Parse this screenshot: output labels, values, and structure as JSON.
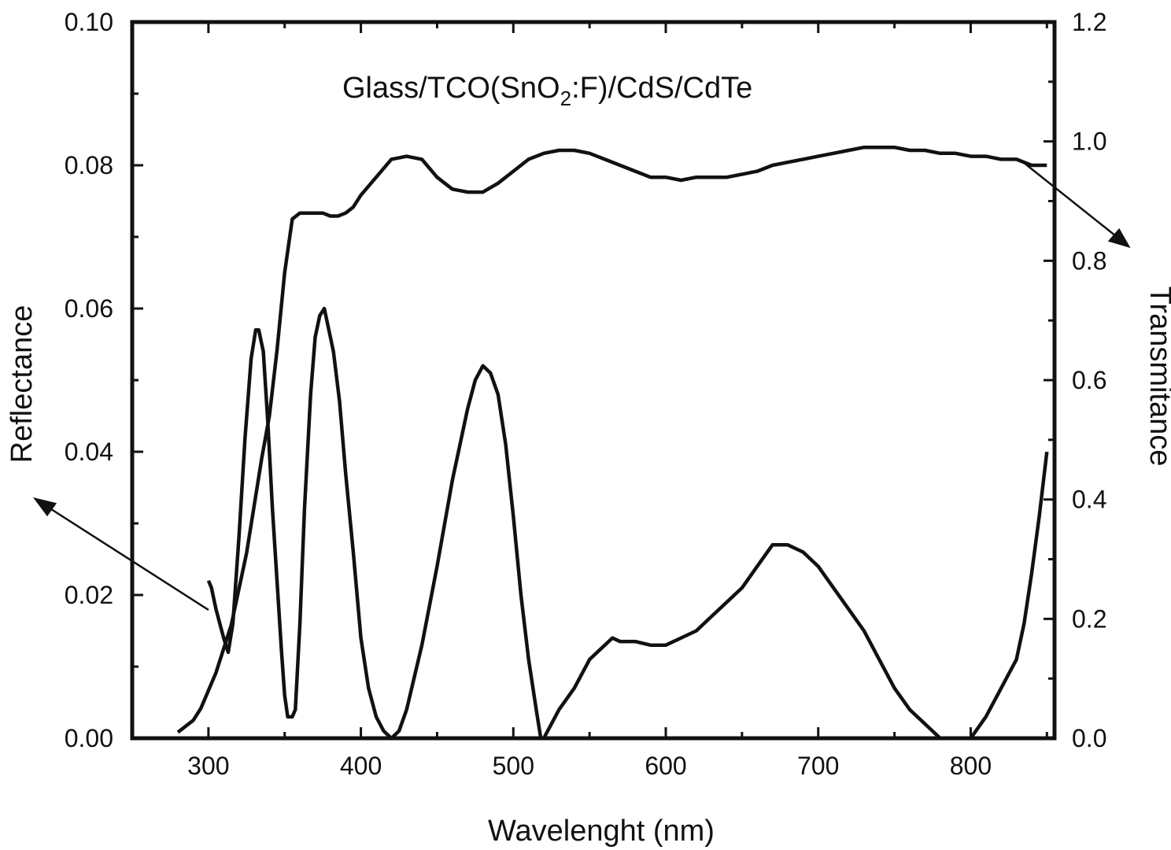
{
  "chart_data": {
    "type": "line",
    "title": {
      "before": "Glass/TCO(SnO",
      "subscript": "2",
      "after": ":F)/CdS/CdTe"
    },
    "xlabel": "Wavelenght (nm)",
    "ylabel_left": "Reflectance",
    "ylabel_right": "Transmitance",
    "xlim": [
      250,
      855
    ],
    "ylim_left": [
      0,
      0.1
    ],
    "ylim_right": [
      0,
      1.2
    ],
    "x_ticks": [
      300,
      400,
      500,
      600,
      700,
      800
    ],
    "x_tick_labels": [
      "300",
      "400",
      "500",
      "600",
      "700",
      "800"
    ],
    "y_left_ticks": [
      0,
      0.02,
      0.04,
      0.06,
      0.08,
      0.1
    ],
    "y_left_tick_labels": [
      "0.00",
      "0.02",
      "0.04",
      "0.06",
      "0.08",
      "0.10"
    ],
    "y_right_ticks": [
      0,
      0.2,
      0.4,
      0.6,
      0.8,
      1.0,
      1.2
    ],
    "y_right_tick_labels": [
      "0.0",
      "0.2",
      "0.4",
      "0.6",
      "0.8",
      "1.0",
      "1.2"
    ],
    "grid": false,
    "legend": "none",
    "series": [
      {
        "axis": "right",
        "x": [
          280,
          290,
          295,
          300,
          305,
          310,
          315,
          320,
          325,
          330,
          335,
          340,
          345,
          350,
          355,
          360,
          365,
          370,
          375,
          380,
          385,
          390,
          395,
          400,
          410,
          420,
          430,
          440,
          450,
          460,
          470,
          480,
          490,
          500,
          510,
          520,
          530,
          540,
          550,
          560,
          570,
          580,
          590,
          600,
          610,
          620,
          630,
          640,
          650,
          660,
          670,
          680,
          690,
          700,
          710,
          720,
          730,
          740,
          750,
          760,
          770,
          780,
          790,
          800,
          810,
          820,
          830,
          840,
          850
        ],
        "y": [
          0.01,
          0.03,
          0.05,
          0.08,
          0.11,
          0.15,
          0.19,
          0.25,
          0.31,
          0.39,
          0.47,
          0.54,
          0.65,
          0.78,
          0.87,
          0.88,
          0.88,
          0.88,
          0.88,
          0.875,
          0.875,
          0.88,
          0.89,
          0.91,
          0.94,
          0.97,
          0.975,
          0.97,
          0.94,
          0.92,
          0.915,
          0.915,
          0.93,
          0.95,
          0.97,
          0.98,
          0.985,
          0.985,
          0.98,
          0.97,
          0.96,
          0.95,
          0.94,
          0.94,
          0.935,
          0.94,
          0.94,
          0.94,
          0.945,
          0.95,
          0.96,
          0.965,
          0.97,
          0.975,
          0.98,
          0.985,
          0.99,
          0.99,
          0.99,
          0.985,
          0.985,
          0.98,
          0.98,
          0.975,
          0.975,
          0.97,
          0.97,
          0.96,
          0.96
        ]
      },
      {
        "axis": "left",
        "x": [
          300,
          302,
          305,
          310,
          313,
          316,
          320,
          324,
          328,
          331,
          333,
          336,
          339,
          342,
          345,
          348,
          350,
          352,
          355,
          357,
          360,
          363,
          367,
          370,
          373,
          376,
          379,
          382,
          386,
          390,
          395,
          400,
          405,
          410,
          415,
          420,
          425,
          430,
          440,
          450,
          460,
          465,
          470,
          475,
          480,
          485,
          490,
          495,
          500,
          505,
          510,
          515,
          518,
          520,
          525,
          530,
          540,
          550,
          560,
          565,
          570,
          580,
          590,
          600,
          610,
          620,
          630,
          640,
          650,
          660,
          670,
          680,
          690,
          700,
          710,
          720,
          730,
          740,
          750,
          760,
          770,
          775,
          780,
          790,
          800,
          810,
          820,
          825,
          830,
          835,
          840,
          845,
          850
        ],
        "y": [
          0.022,
          0.021,
          0.018,
          0.014,
          0.012,
          0.016,
          0.028,
          0.042,
          0.053,
          0.057,
          0.057,
          0.054,
          0.044,
          0.032,
          0.022,
          0.012,
          0.006,
          0.003,
          0.003,
          0.004,
          0.016,
          0.032,
          0.048,
          0.056,
          0.059,
          0.06,
          0.057,
          0.054,
          0.047,
          0.037,
          0.026,
          0.014,
          0.007,
          0.003,
          0.001,
          0.0,
          0.001,
          0.004,
          0.013,
          0.024,
          0.036,
          0.041,
          0.046,
          0.05,
          0.052,
          0.051,
          0.048,
          0.041,
          0.031,
          0.02,
          0.011,
          0.004,
          0.0,
          0.0,
          0.002,
          0.004,
          0.007,
          0.011,
          0.013,
          0.014,
          0.0135,
          0.0135,
          0.013,
          0.013,
          0.014,
          0.015,
          0.017,
          0.019,
          0.021,
          0.024,
          0.027,
          0.027,
          0.026,
          0.024,
          0.021,
          0.018,
          0.015,
          0.011,
          0.007,
          0.004,
          0.002,
          0.001,
          0.0,
          0.0,
          0.0,
          0.003,
          0.007,
          0.009,
          0.011,
          0.016,
          0.023,
          0.031,
          0.04
        ]
      }
    ]
  }
}
